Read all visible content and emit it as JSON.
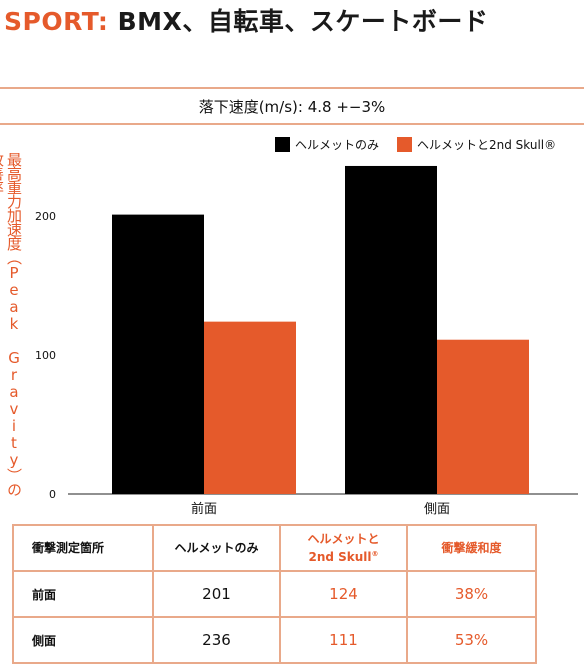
{
  "header": {
    "sport_label": "SPORT:",
    "title_rest": " BMX、自転車、スケートボード"
  },
  "subtitle": "落下速度(m/s): 4.8 +−3%",
  "colors": {
    "accent": "#e55a2b",
    "helmet_only": "#000000",
    "helmet_2nd_skull": "#e55a2b",
    "rule": "#e9a98a"
  },
  "chart_data": {
    "type": "bar",
    "categories": [
      "前面",
      "側面"
    ],
    "series": [
      {
        "name": "ヘルメットのみ",
        "values": [
          201,
          236
        ]
      },
      {
        "name": "ヘルメットと2nd Skull®",
        "values": [
          124,
          111
        ]
      }
    ],
    "ylabel": "最高重力加速度（Peak Gravity）の改善率",
    "yticks": [
      0,
      100,
      200
    ],
    "ylim": [
      0,
      250
    ],
    "legend_position": "top-right",
    "grid": false
  },
  "table": {
    "headers": [
      "衝撃測定箇所",
      "ヘルメットのみ",
      "ヘルメットと",
      "2nd Skull",
      "®",
      "衝撃緩和度"
    ],
    "rows": [
      {
        "label": "前面",
        "helmet": "201",
        "skull": "124",
        "reduction": "38%"
      },
      {
        "label": "側面",
        "helmet": "236",
        "skull": "111",
        "reduction": "53%"
      }
    ]
  }
}
